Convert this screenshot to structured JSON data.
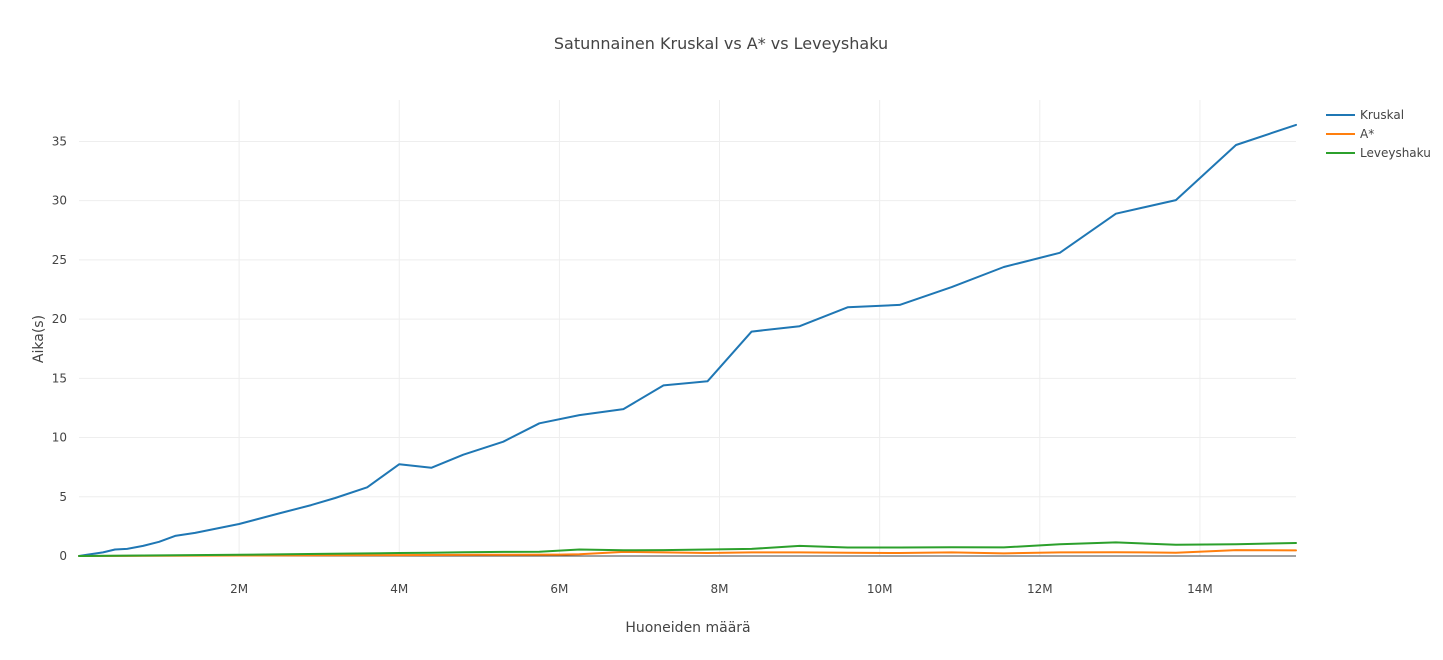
{
  "chart_data": {
    "type": "line",
    "title": "Satunnainen Kruskal vs A* vs Leveyshaku",
    "xlabel": "Huoneiden määrä",
    "ylabel": "Aika(s)",
    "xlim": [
      0,
      15200000
    ],
    "ylim": [
      0,
      38.5
    ],
    "x_ticks": [
      2000000,
      4000000,
      6000000,
      8000000,
      10000000,
      12000000,
      14000000
    ],
    "x_tick_labels": [
      "2M",
      "4M",
      "6M",
      "8M",
      "10M",
      "12M",
      "14M"
    ],
    "y_ticks": [
      0,
      5,
      10,
      15,
      20,
      25,
      30,
      35
    ],
    "y_tick_labels": [
      "0",
      "5",
      "10",
      "15",
      "20",
      "25",
      "30",
      "35"
    ],
    "grid": true,
    "legend_position": "top-right",
    "series": [
      {
        "name": "Kruskal",
        "color": "#1f77b4",
        "x": [
          0,
          100000,
          300000,
          450000,
          600000,
          800000,
          1000000,
          1200000,
          1450000,
          2000000,
          2500000,
          2900000,
          3200000,
          3600000,
          4000000,
          4400000,
          4800000,
          5300000,
          5750000,
          6250000,
          6800000,
          7300000,
          7850000,
          8400000,
          9000000,
          9600000,
          10250000,
          10900000,
          11550000,
          12250000,
          12950000,
          13700000,
          14450000,
          15200000
        ],
        "y": [
          0,
          0.1,
          0.3,
          0.55,
          0.6,
          0.85,
          1.2,
          1.7,
          1.95,
          2.7,
          3.6,
          4.3,
          4.9,
          5.8,
          7.75,
          7.45,
          8.55,
          9.65,
          11.2,
          11.9,
          12.4,
          14.4,
          14.75,
          18.95,
          19.4,
          21.0,
          21.2,
          22.7,
          24.4,
          25.6,
          28.9,
          30.05,
          34.7,
          36.4
        ]
      },
      {
        "name": "A*",
        "color": "#ff7f0e",
        "x": [
          0,
          1000000,
          2000000,
          3000000,
          4000000,
          5000000,
          6000000,
          6250000,
          6800000,
          7300000,
          7850000,
          8400000,
          9000000,
          9600000,
          10250000,
          10900000,
          11550000,
          12250000,
          12950000,
          13700000,
          14450000,
          15200000
        ],
        "y": [
          0,
          0.02,
          0.04,
          0.06,
          0.08,
          0.1,
          0.12,
          0.15,
          0.35,
          0.3,
          0.25,
          0.3,
          0.3,
          0.27,
          0.25,
          0.3,
          0.22,
          0.3,
          0.32,
          0.28,
          0.5,
          0.47
        ]
      },
      {
        "name": "Leveyshaku",
        "color": "#2ca02c",
        "x": [
          0,
          1000000,
          2000000,
          3000000,
          4000000,
          4400000,
          4800000,
          5300000,
          5750000,
          6250000,
          6800000,
          7300000,
          7850000,
          8400000,
          9000000,
          9600000,
          10250000,
          10900000,
          11550000,
          12250000,
          12950000,
          13700000,
          14450000,
          15200000
        ],
        "y": [
          0,
          0.05,
          0.1,
          0.18,
          0.25,
          0.28,
          0.32,
          0.35,
          0.36,
          0.55,
          0.48,
          0.5,
          0.55,
          0.6,
          0.85,
          0.72,
          0.72,
          0.74,
          0.73,
          1.0,
          1.15,
          0.95,
          1.0,
          1.1
        ]
      }
    ]
  }
}
